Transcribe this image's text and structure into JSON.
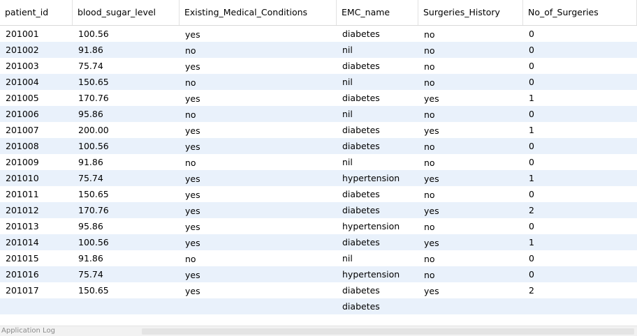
{
  "columns": [
    "patient_id",
    "blood_sugar_level",
    "Existing_Medical_Conditions",
    "EMC_name",
    "Surgeries_History",
    "No_of_Surgeries"
  ],
  "rows": [
    [
      "201001",
      "100.56",
      "yes",
      "diabetes",
      "no",
      "0"
    ],
    [
      "201002",
      "91.86",
      "no",
      "nil",
      "no",
      "0"
    ],
    [
      "201003",
      "75.74",
      "yes",
      "diabetes",
      "no",
      "0"
    ],
    [
      "201004",
      "150.65",
      "no",
      "nil",
      "no",
      "0"
    ],
    [
      "201005",
      "170.76",
      "yes",
      "diabetes",
      "yes",
      "1"
    ],
    [
      "201006",
      "95.86",
      "no",
      "nil",
      "no",
      "0"
    ],
    [
      "201007",
      "200.00",
      "yes",
      "diabetes",
      "yes",
      "1"
    ],
    [
      "201008",
      "100.56",
      "yes",
      "diabetes",
      "no",
      "0"
    ],
    [
      "201009",
      "91.86",
      "no",
      "nil",
      "no",
      "0"
    ],
    [
      "201010",
      "75.74",
      "yes",
      "hypertension",
      "yes",
      "1"
    ],
    [
      "201011",
      "150.65",
      "yes",
      "diabetes",
      "no",
      "0"
    ],
    [
      "201012",
      "170.76",
      "yes",
      "diabetes",
      "yes",
      "2"
    ],
    [
      "201013",
      "95.86",
      "yes",
      "hypertension",
      "no",
      "0"
    ],
    [
      "201014",
      "100.56",
      "yes",
      "diabetes",
      "yes",
      "1"
    ],
    [
      "201015",
      "91.86",
      "no",
      "nil",
      "no",
      "0"
    ],
    [
      "201016",
      "75.74",
      "yes",
      "hypertension",
      "no",
      "0"
    ],
    [
      "201017",
      "150.65",
      "yes",
      "diabetes",
      "yes",
      "2"
    ]
  ],
  "partial_row": [
    "",
    "",
    "",
    "diabetes",
    "",
    ""
  ],
  "status": {
    "text": "Application Log"
  },
  "colors": {
    "alt_row": "#e9f1fb",
    "header_bg": "#ffffff"
  }
}
